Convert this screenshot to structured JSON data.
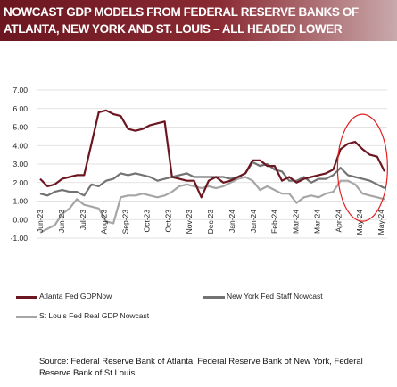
{
  "title_lines": [
    "NOWCAST GDP MODELS FROM FEDERAL RESERVE BANKS OF",
    "ATLANTA, NEW YORK AND ST. LOUIS – ALL HEADED LOWER"
  ],
  "source": "Source: Federal Reserve Bank of Atlanta,  Federal Reserve Bank of New York, Federal Reserve Bank of St Louis",
  "chart_data": {
    "type": "line",
    "title": "NOWCAST GDP MODELS FROM FEDERAL RESERVE BANKS OF ATLANTA, NEW YORK AND ST. LOUIS – ALL HEADED LOWER",
    "xlabel": "",
    "ylabel": "",
    "ylim": [
      -1.0,
      7.0
    ],
    "yticks": [
      "7.00",
      "6.00",
      "5.00",
      "4.00",
      "3.00",
      "2.00",
      "1.00",
      "0.00",
      "-1.00"
    ],
    "x_tick_labels": [
      "Jun-23",
      "Jun-23",
      "Jul-23",
      "Aug-23",
      "Sep-23",
      "Oct-23",
      "Oct-23",
      "Nov-23",
      "Dec-23",
      "Jan-24",
      "Jan-24",
      "Feb-24",
      "Mar-24",
      "Mar-24",
      "Apr-24",
      "May-24",
      "May-24"
    ],
    "grid": "horizontal",
    "legend_position": "bottom",
    "highlight": "red ellipse around May-24 values",
    "series": [
      {
        "name": "Atlanta Fed GDPNow",
        "color": "#6b1620",
        "values": [
          2.2,
          1.8,
          1.9,
          2.2,
          2.3,
          2.4,
          2.4,
          4.1,
          5.8,
          5.9,
          5.7,
          5.6,
          4.9,
          4.8,
          4.9,
          5.1,
          5.2,
          5.3,
          2.3,
          2.2,
          2.1,
          2.1,
          1.2,
          2.1,
          2.3,
          2.0,
          2.1,
          2.3,
          2.5,
          3.2,
          3.2,
          2.9,
          2.9,
          2.1,
          2.3,
          2.0,
          2.2,
          2.3,
          2.4,
          2.5,
          2.7,
          3.8,
          4.1,
          4.2,
          3.8,
          3.5,
          3.4,
          2.6
        ]
      },
      {
        "name": "New York Fed Staff Nowcast",
        "color": "#737373",
        "values": [
          1.4,
          1.3,
          1.5,
          1.6,
          1.5,
          1.5,
          1.3,
          1.9,
          1.8,
          2.1,
          2.2,
          2.5,
          2.4,
          2.5,
          2.4,
          2.3,
          2.1,
          2.2,
          2.3,
          2.4,
          2.5,
          2.3,
          2.3,
          2.3,
          2.3,
          2.3,
          2.2,
          2.3,
          2.5,
          3.1,
          2.9,
          3.0,
          2.7,
          2.6,
          2.1,
          2.1,
          2.3,
          2.0,
          2.2,
          2.2,
          2.4,
          2.8,
          2.4,
          2.3,
          2.2,
          2.1,
          1.9,
          1.7
        ]
      },
      {
        "name": "St Louis Fed Real GDP Nowcast",
        "color": "#a6a6a6",
        "values": [
          -0.7,
          -0.5,
          -0.3,
          0.3,
          0.6,
          1.1,
          0.8,
          0.7,
          0.6,
          -0.1,
          -0.2,
          1.2,
          1.3,
          1.3,
          1.4,
          1.3,
          1.2,
          1.3,
          1.5,
          1.8,
          1.9,
          1.8,
          1.7,
          1.8,
          1.7,
          1.8,
          2.0,
          2.2,
          2.3,
          2.1,
          1.6,
          1.8,
          1.6,
          1.4,
          1.4,
          0.9,
          1.2,
          1.3,
          1.2,
          1.4,
          1.5,
          2.1,
          2.1,
          1.9,
          1.4,
          1.3,
          1.2,
          1.1
        ]
      }
    ]
  }
}
